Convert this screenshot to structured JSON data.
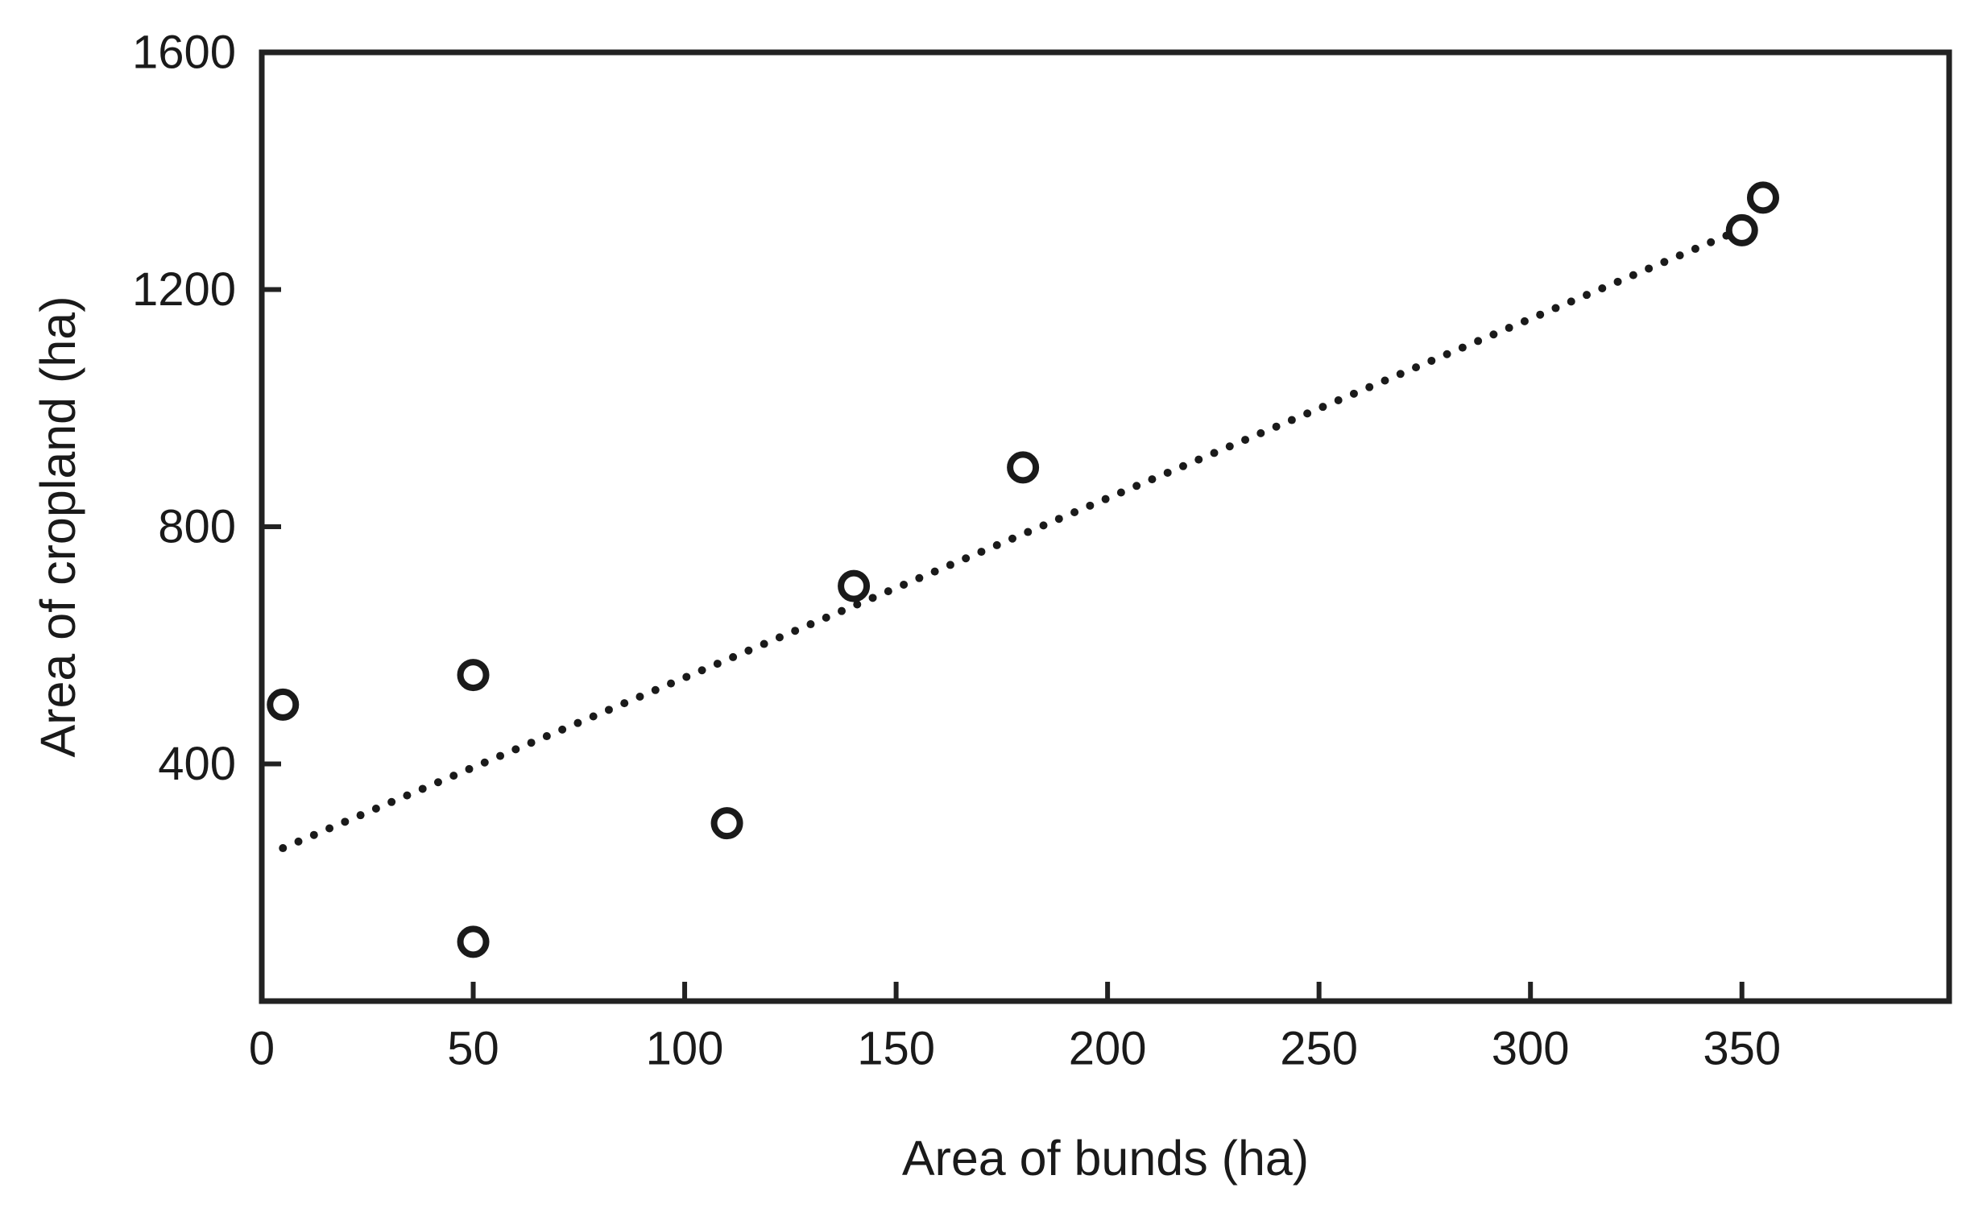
{
  "figure": {
    "background": "#ffffff"
  },
  "chart_data": {
    "type": "scatter",
    "title": "",
    "xlabel": "Area of bunds (ha)",
    "ylabel": "Area of cropland (ha)",
    "xlim": [
      0,
      399
    ],
    "ylim": [
      0,
      1600
    ],
    "xticks": [
      50,
      100,
      150,
      200,
      250,
      300,
      350
    ],
    "yticks": [
      400,
      800,
      1200,
      1600
    ],
    "grid": false,
    "legend": null,
    "marker": "open-circle",
    "points": [
      {
        "x": 5,
        "y": 500
      },
      {
        "x": 50,
        "y": 550
      },
      {
        "x": 50,
        "y": 100
      },
      {
        "x": 110,
        "y": 300
      },
      {
        "x": 140,
        "y": 700
      },
      {
        "x": 180,
        "y": 900
      },
      {
        "x": 350,
        "y": 1300
      },
      {
        "x": 355,
        "y": 1355
      }
    ],
    "trendline": {
      "style": "dotted",
      "from": {
        "x": 5,
        "y": 258
      },
      "to": {
        "x": 350,
        "y": 1302
      }
    },
    "colors": {
      "axis": "#222222",
      "text": "#1a1a1a",
      "marker": "#1a1a1a",
      "trend": "#1a1a1a",
      "background": "#ffffff"
    }
  }
}
